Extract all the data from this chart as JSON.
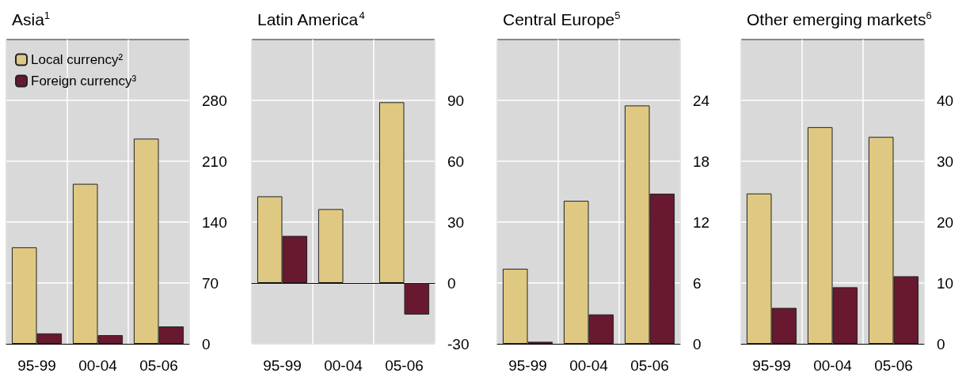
{
  "chart_data": [
    {
      "type": "bar",
      "title": "Asia$^{1}$",
      "categories": [
        "95-99",
        "00-04",
        "05-06"
      ],
      "series": [
        {
          "name": "Local currency²",
          "color": "#dfc982",
          "values": [
            111,
            184,
            236
          ]
        },
        {
          "name": "Foreign currency³",
          "color": "#68192f",
          "values": [
            12,
            10,
            20
          ]
        }
      ],
      "ylim": [
        0,
        350
      ],
      "yticks": [
        0,
        70,
        140,
        210,
        280
      ],
      "grid": true,
      "legend": "top left"
    },
    {
      "type": "bar",
      "title": "Latin America$^{4}$",
      "categories": [
        "95-99",
        "00-04",
        "05-06"
      ],
      "series": [
        {
          "color": "#dfc982",
          "values": [
            42.7,
            36.4,
            89.1
          ]
        },
        {
          "color": "#68192f",
          "values": [
            23.2,
            null,
            -15.6
          ]
        }
      ],
      "ylim": [
        -30,
        120
      ],
      "yticks": [
        -30,
        0,
        30,
        60,
        90
      ],
      "grid": true
    },
    {
      "type": "bar",
      "title": "Central Europe$^{5}$",
      "categories": [
        "95-99",
        "00-04",
        "05-06"
      ],
      "series": [
        {
          "color": "#dfc982",
          "values": [
            7.4,
            14.1,
            23.5
          ]
        },
        {
          "color": "#68192f",
          "values": [
            0.2,
            2.9,
            14.8
          ]
        }
      ],
      "ylim": [
        0,
        30
      ],
      "yticks": [
        0,
        6,
        12,
        18,
        24
      ],
      "grid": true
    },
    {
      "type": "bar",
      "title": "Other emerging markets$^{6}$",
      "categories": [
        "95-99",
        "00-04",
        "05-06"
      ],
      "series": [
        {
          "color": "#dfc982",
          "values": [
            24.7,
            35.6,
            34.0
          ]
        },
        {
          "color": "#68192f",
          "values": [
            5.9,
            9.3,
            11.1
          ]
        }
      ],
      "ylim": [
        0,
        50
      ],
      "yticks": [
        0,
        10,
        20,
        30,
        40
      ],
      "grid": true
    }
  ]
}
